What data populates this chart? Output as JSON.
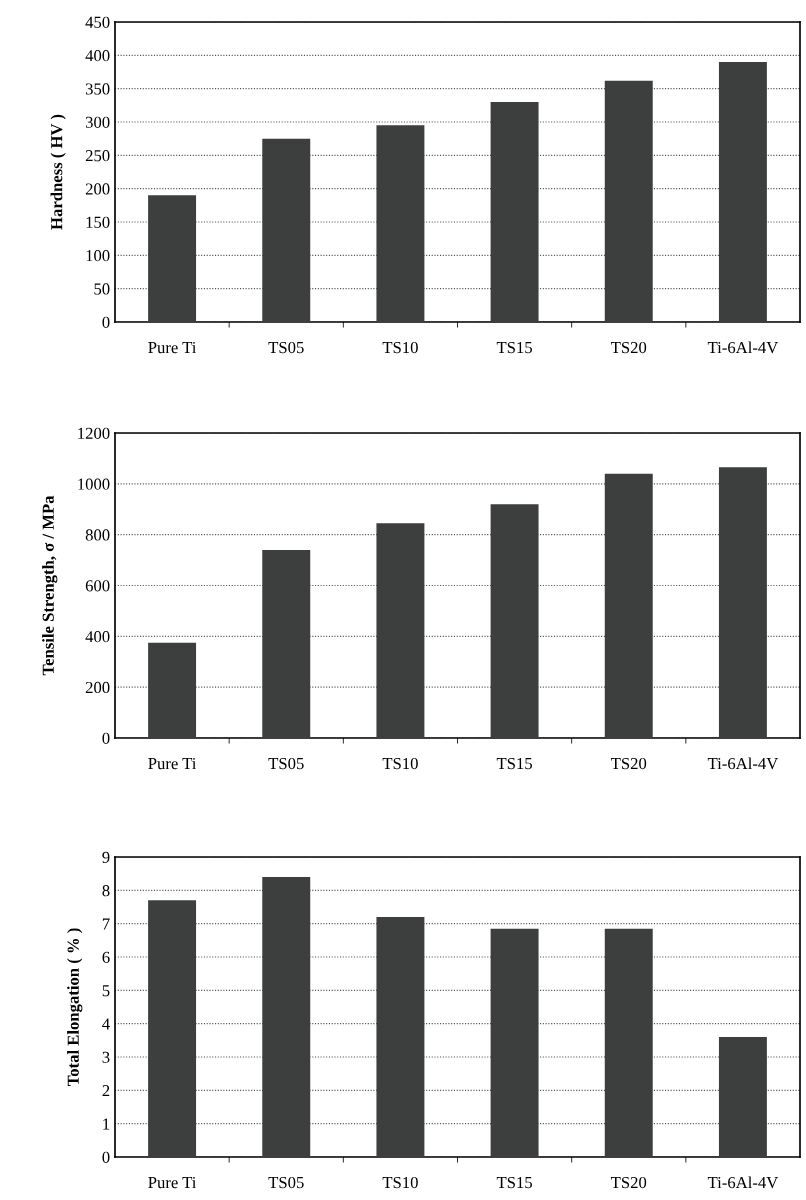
{
  "chart_data": [
    {
      "type": "bar",
      "ylabel": "Hardness ( HV )",
      "categories": [
        "Pure Ti",
        "TS05",
        "TS10",
        "TS15",
        "TS20",
        "Ti-6Al-4V"
      ],
      "values": [
        190,
        275,
        295,
        330,
        362,
        390
      ],
      "color": "#3c3f3e",
      "ylim": [
        0,
        450
      ],
      "yticks": [
        0,
        50,
        100,
        150,
        200,
        250,
        300,
        350,
        400,
        450
      ],
      "grid": "y"
    },
    {
      "type": "bar",
      "ylabel": "Tensile Strength, σ / MPa",
      "categories": [
        "Pure Ti",
        "TS05",
        "TS10",
        "TS15",
        "TS20",
        "Ti-6Al-4V"
      ],
      "values": [
        375,
        740,
        845,
        920,
        1040,
        1065
      ],
      "color": "#3c3f3e",
      "ylim": [
        0,
        1200
      ],
      "yticks": [
        0,
        200,
        400,
        600,
        800,
        1000,
        1200
      ],
      "grid": "y"
    },
    {
      "type": "bar",
      "ylabel": "Total Elongation ( % )",
      "categories": [
        "Pure Ti",
        "TS05",
        "TS10",
        "TS15",
        "TS20",
        "Ti-6Al-4V"
      ],
      "values": [
        7.7,
        8.4,
        7.2,
        6.85,
        6.85,
        3.6
      ],
      "color": "#3c3f3e",
      "ylim": [
        0,
        9
      ],
      "yticks": [
        0,
        1,
        2,
        3,
        4,
        5,
        6,
        7,
        8,
        9
      ],
      "grid": "y"
    }
  ]
}
